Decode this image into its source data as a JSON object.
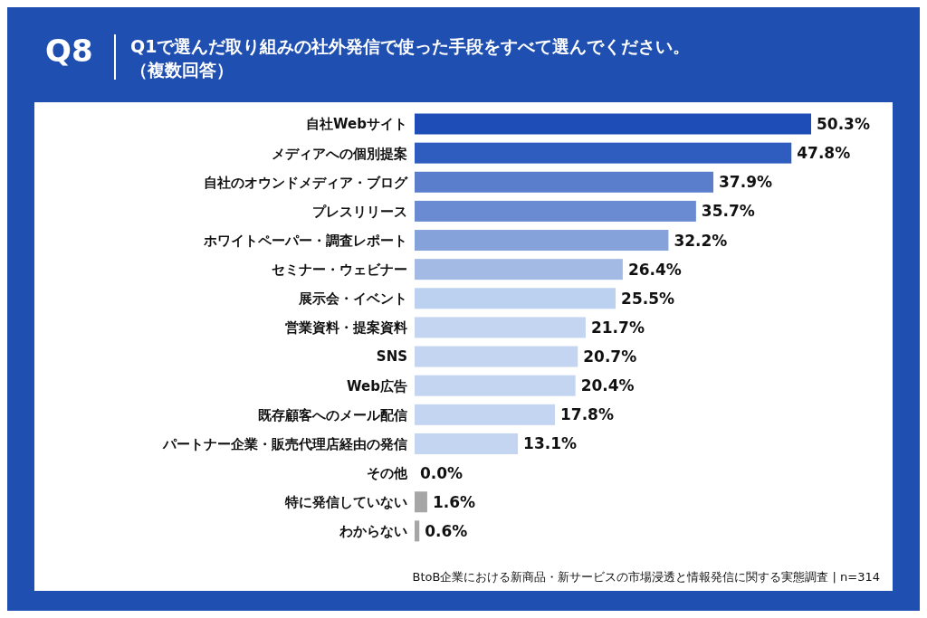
{
  "chart_data": {
    "type": "bar",
    "orientation": "horizontal",
    "title": "Q1で選んだ取り組みの社外発信で使った手段をすべて選んでください。",
    "subtitle": "（複数回答）",
    "annotations": [
      "Q8",
      "BtoB企業における新商品・新サービスの市場浸透と情報発信に関する実態調査 | n=314"
    ],
    "categories": [
      "自社Webサイト",
      "メディアへの個別提案",
      "自社のオウンドメディア・ブログ",
      "プレスリリース",
      "ホワイトペーパー・調査レポート",
      "セミナー・ウェビナー",
      "展示会・イベント",
      "営業資料・提案資料",
      "SNS",
      "Web広告",
      "既存顧客へのメール配信",
      "パートナー企業・販売代理店経由の発信",
      "その他",
      "特に発信していない",
      "わからない"
    ],
    "values": [
      50.3,
      47.8,
      37.9,
      35.7,
      32.2,
      26.4,
      25.5,
      21.7,
      20.7,
      20.4,
      17.8,
      13.1,
      0.0,
      1.6,
      0.6
    ],
    "value_labels": [
      "50.3%",
      "47.8%",
      "37.9%",
      "35.7%",
      "32.2%",
      "26.4%",
      "25.5%",
      "21.7%",
      "20.7%",
      "20.4%",
      "17.8%",
      "13.1%",
      "0.0%",
      "1.6%",
      "0.6%"
    ],
    "colors": [
      "#1e4db7",
      "#2f5cbf",
      "#5a7ecb",
      "#6a8bd1",
      "#86a2da",
      "#a2bae4",
      "#bcd0ef",
      "#c3d5f0",
      "#c3d5f0",
      "#c3d5f0",
      "#c3d5f0",
      "#c3d5f0",
      "#c3d5f0",
      "#a6a6a6",
      "#a6a6a6"
    ]
  }
}
